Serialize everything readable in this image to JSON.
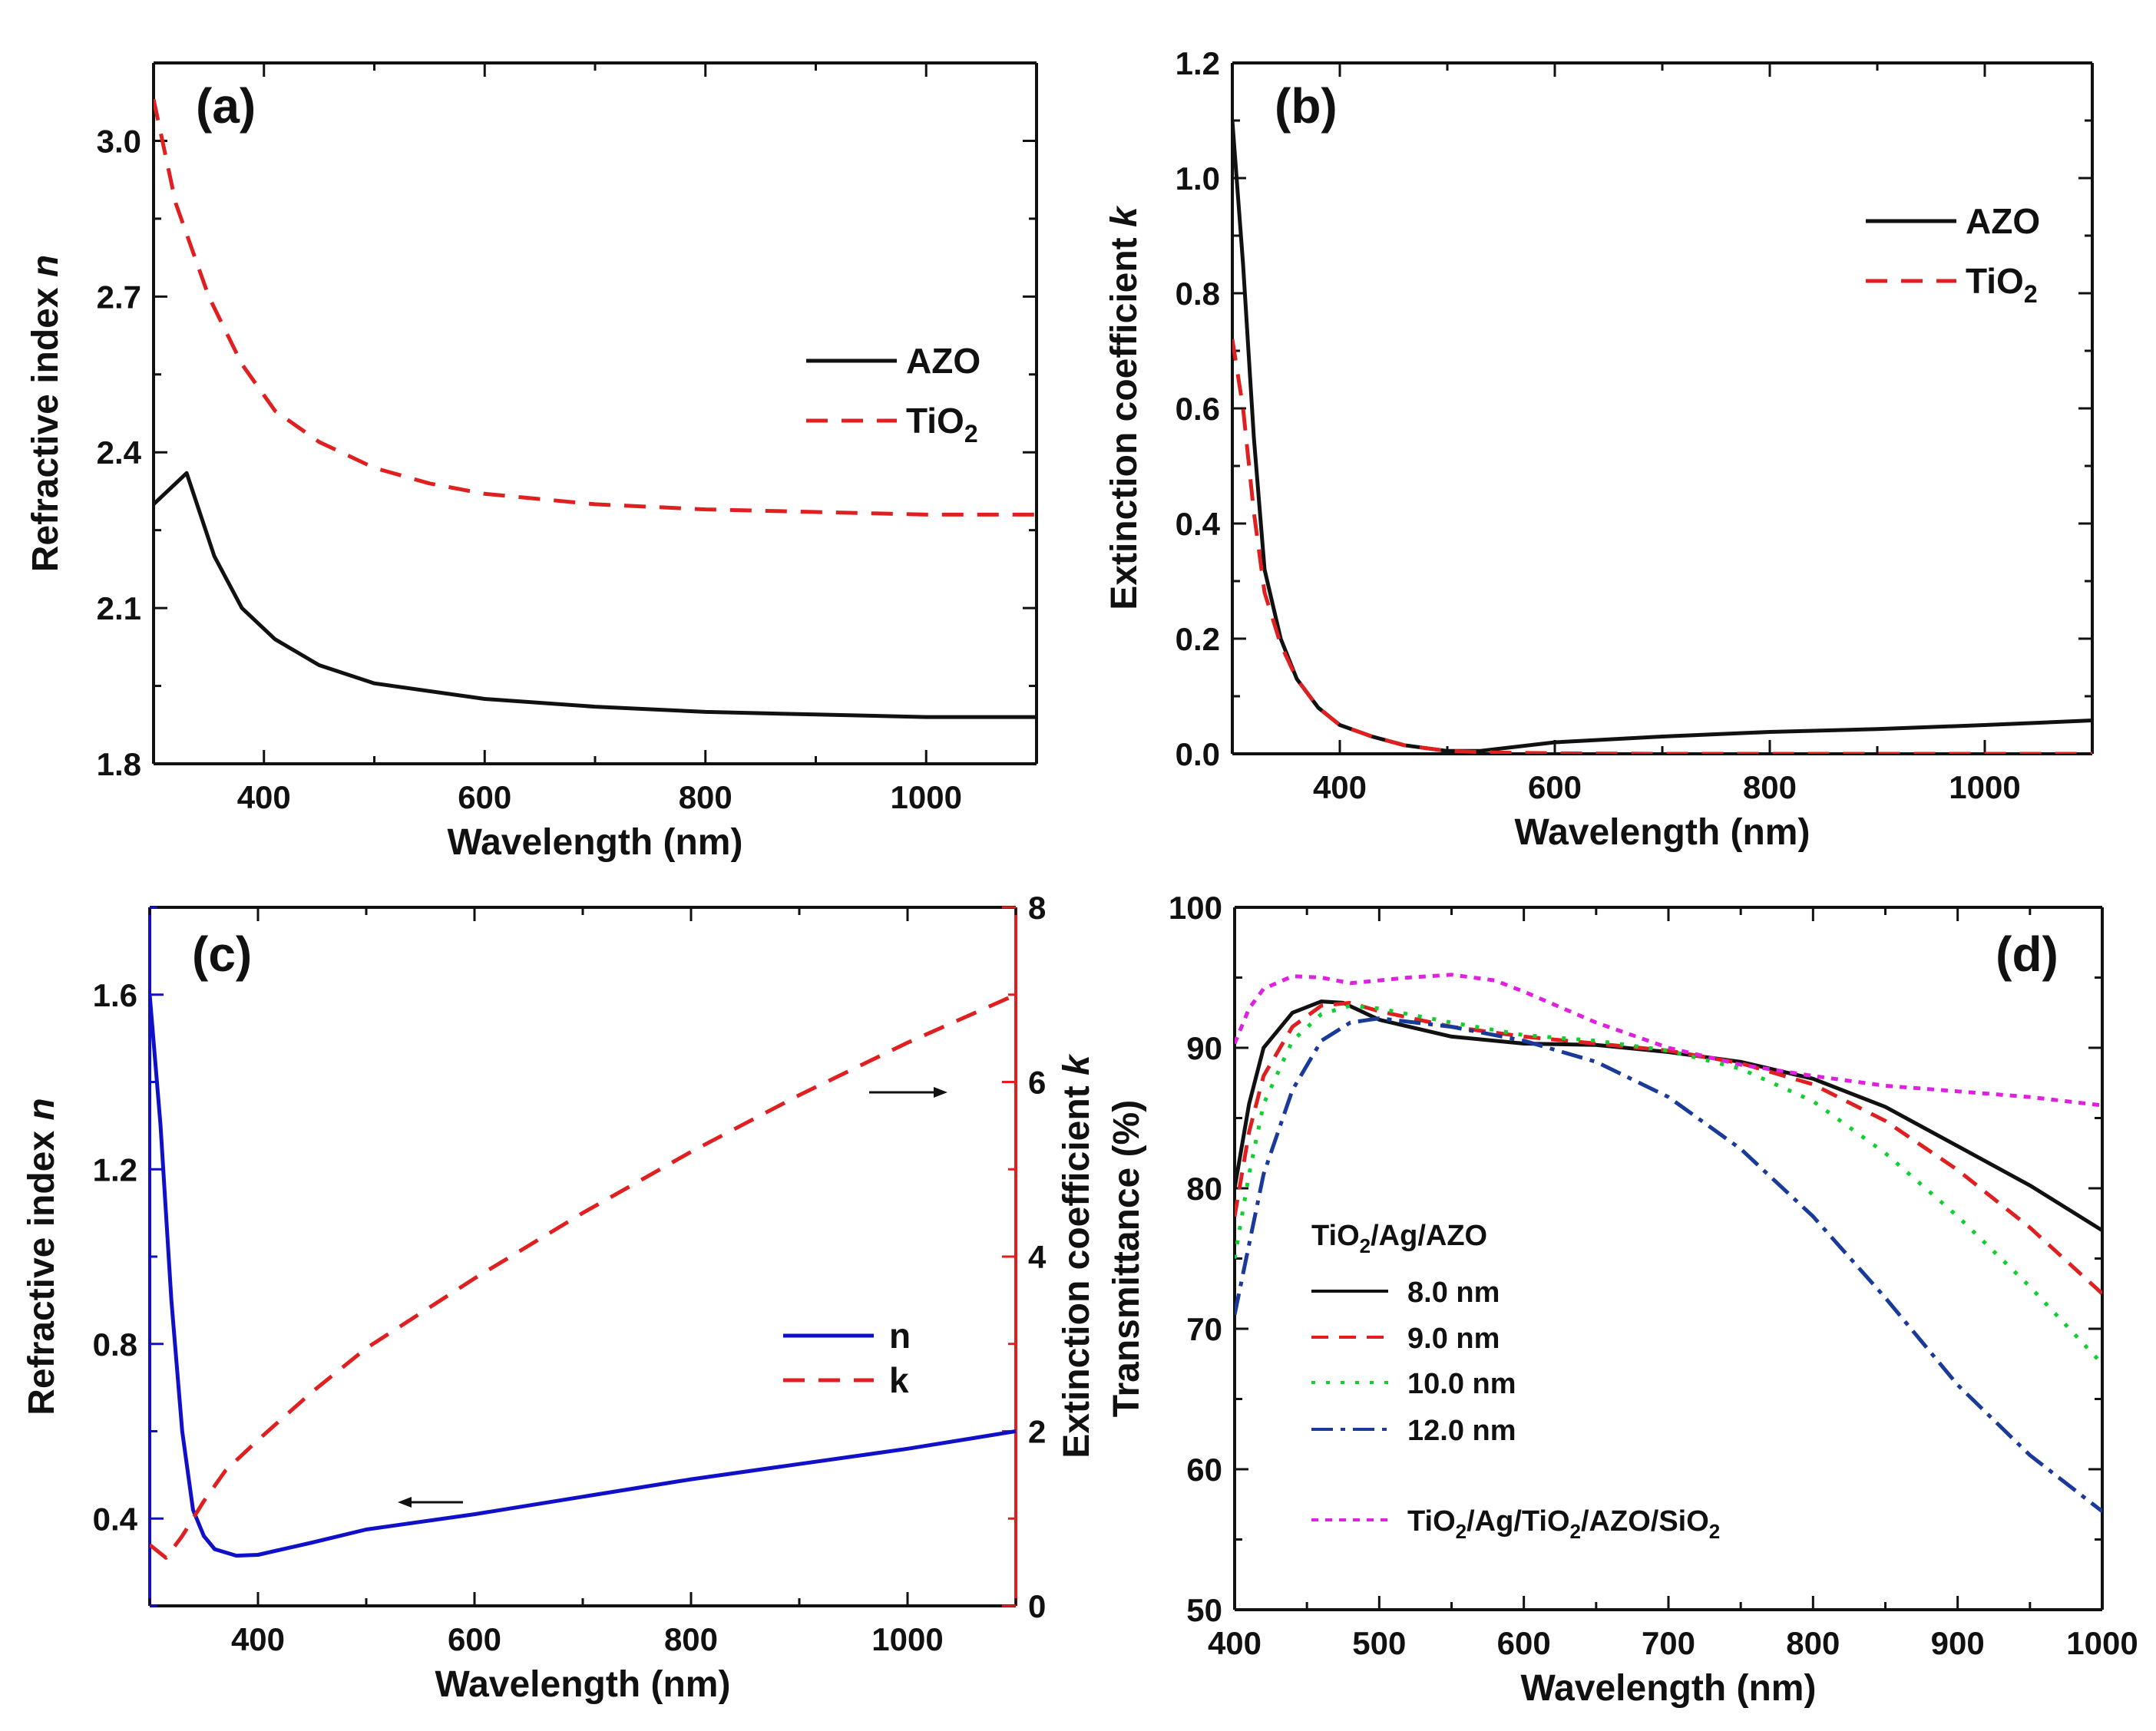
{
  "colors": {
    "black": "#111111",
    "red": "#e02020",
    "blue": "#1010c8",
    "green": "#10d030",
    "navy": "#1a3a9a",
    "magenta": "#e020e0"
  },
  "chart_data": [
    {
      "id": "a",
      "type": "line",
      "panel_label": "(a)",
      "xlabel": "Wavelength (nm)",
      "ylabel": "Refractive index ",
      "ylabel_symbol": "n",
      "xlim": [
        300,
        1100
      ],
      "ylim": [
        1.8,
        3.15
      ],
      "xticks": [
        400,
        600,
        800,
        1000
      ],
      "xtick_labels": [
        "400",
        "600",
        "800",
        "1000"
      ],
      "yticks": [
        1.8,
        2.1,
        2.4,
        2.7,
        3.0
      ],
      "ytick_labels": [
        "1.8",
        "2.1",
        "2.4",
        "2.7",
        "3.0"
      ],
      "legend_position": "center-right",
      "series": [
        {
          "name": "AZO",
          "legend": "AZO",
          "color": "#111111",
          "dash": "",
          "x": [
            300,
            330,
            355,
            380,
            410,
            450,
            500,
            600,
            700,
            800,
            900,
            1000,
            1100
          ],
          "y": [
            2.3,
            2.36,
            2.2,
            2.1,
            2.04,
            1.99,
            1.955,
            1.925,
            1.91,
            1.9,
            1.895,
            1.89,
            1.89
          ]
        },
        {
          "name": "TiO2",
          "legend": "TiO",
          "legend_sub": "2",
          "color": "#e02020",
          "dash": "28,18",
          "x": [
            300,
            320,
            350,
            380,
            410,
            450,
            500,
            550,
            600,
            700,
            800,
            900,
            1000,
            1100
          ],
          "y": [
            3.08,
            2.88,
            2.7,
            2.57,
            2.48,
            2.42,
            2.37,
            2.34,
            2.32,
            2.3,
            2.29,
            2.285,
            2.28,
            2.28
          ]
        }
      ]
    },
    {
      "id": "b",
      "type": "line",
      "panel_label": "(b)",
      "xlabel": "Wavelength (nm)",
      "ylabel": "Extinction coefficient ",
      "ylabel_symbol": "k",
      "xlim": [
        300,
        1100
      ],
      "ylim": [
        0.0,
        1.2
      ],
      "xticks": [
        400,
        600,
        800,
        1000
      ],
      "xtick_labels": [
        "400",
        "600",
        "800",
        "1000"
      ],
      "yticks": [
        0.0,
        0.2,
        0.4,
        0.6,
        0.8,
        1.0,
        1.2
      ],
      "ytick_labels": [
        "0.0",
        "0.2",
        "0.4",
        "0.6",
        "0.8",
        "1.0",
        "1.2"
      ],
      "legend_position": "upper-right",
      "series": [
        {
          "name": "AZO",
          "legend": "AZO",
          "color": "#111111",
          "dash": "",
          "x": [
            300,
            310,
            320,
            330,
            345,
            360,
            380,
            400,
            430,
            460,
            500,
            530,
            600,
            700,
            800,
            900,
            1000,
            1100
          ],
          "y": [
            1.1,
            0.85,
            0.55,
            0.32,
            0.2,
            0.13,
            0.08,
            0.05,
            0.03,
            0.015,
            0.005,
            0.005,
            0.02,
            0.03,
            0.038,
            0.043,
            0.05,
            0.058
          ]
        },
        {
          "name": "TiO2",
          "legend": "TiO",
          "legend_sub": "2",
          "color": "#e02020",
          "dash": "28,18",
          "x": [
            300,
            310,
            320,
            330,
            345,
            360,
            380,
            400,
            430,
            460,
            500,
            550,
            600,
            700,
            800,
            900,
            1000,
            1100
          ],
          "y": [
            0.72,
            0.6,
            0.42,
            0.28,
            0.19,
            0.13,
            0.08,
            0.05,
            0.03,
            0.015,
            0.005,
            0.002,
            0.001,
            0.0,
            0.0,
            0.0,
            0.0,
            0.0
          ]
        }
      ]
    },
    {
      "id": "c",
      "type": "line",
      "panel_label": "(c)",
      "xlabel": "Wavelength (nm)",
      "ylabel": "Refractive index ",
      "ylabel_symbol": "n",
      "ylabel_right": "Extinction coefficient ",
      "ylabel_right_symbol": "k",
      "xlim": [
        300,
        1100
      ],
      "ylim": [
        0.2,
        1.8
      ],
      "ylim_right": [
        0,
        8
      ],
      "xticks": [
        400,
        600,
        800,
        1000
      ],
      "xtick_labels": [
        "400",
        "600",
        "800",
        "1000"
      ],
      "yticks": [
        0.4,
        0.8,
        1.2,
        1.6
      ],
      "ytick_labels": [
        "0.4",
        "0.8",
        "1.2",
        "1.6"
      ],
      "yticks_right": [
        0,
        2,
        4,
        6,
        8
      ],
      "ytick_right_labels": [
        "0",
        "2",
        "4",
        "6",
        "8"
      ],
      "legend_position": "center-right",
      "annotations": [
        "arrow pointing left toward n axis",
        "arrow pointing right toward k axis"
      ],
      "series": [
        {
          "name": "n",
          "legend": "n",
          "color": "#1010c8",
          "dash": "",
          "axis": "left",
          "x": [
            300,
            310,
            320,
            330,
            340,
            350,
            360,
            380,
            400,
            450,
            500,
            600,
            700,
            800,
            900,
            1000,
            1100
          ],
          "y": [
            1.6,
            1.3,
            0.9,
            0.6,
            0.42,
            0.36,
            0.33,
            0.315,
            0.317,
            0.345,
            0.375,
            0.41,
            0.45,
            0.49,
            0.525,
            0.56,
            0.6
          ]
        },
        {
          "name": "k",
          "legend": "k",
          "color": "#e02020",
          "dash": "28,18",
          "axis": "right",
          "x": [
            300,
            315,
            330,
            350,
            370,
            400,
            450,
            500,
            550,
            600,
            700,
            800,
            900,
            1000,
            1100
          ],
          "y": [
            0.7,
            0.55,
            0.8,
            1.2,
            1.55,
            1.9,
            2.45,
            2.95,
            3.35,
            3.75,
            4.5,
            5.2,
            5.85,
            6.45,
            7.0
          ]
        }
      ]
    },
    {
      "id": "d",
      "type": "line",
      "panel_label": "(d)",
      "xlabel": "Wavelength (nm)",
      "ylabel": "Transmittance (%)",
      "xlim": [
        400,
        1000
      ],
      "ylim": [
        50,
        100
      ],
      "xticks": [
        400,
        500,
        600,
        700,
        800,
        900,
        1000
      ],
      "xtick_labels": [
        "400",
        "500",
        "600",
        "700",
        "800",
        "900",
        "1000"
      ],
      "yticks": [
        50,
        60,
        70,
        80,
        90,
        100
      ],
      "ytick_labels": [
        "50",
        "60",
        "70",
        "80",
        "90",
        "100"
      ],
      "legend_position": "lower-left",
      "legend_title": "TiO",
      "legend_title_sub": "2",
      "legend_title_rest": "/Ag/AZO",
      "series": [
        {
          "name": "8.0 nm",
          "legend": "8.0 nm",
          "color": "#111111",
          "dash": "",
          "x": [
            400,
            410,
            420,
            440,
            460,
            475,
            500,
            550,
            600,
            650,
            700,
            750,
            800,
            850,
            900,
            950,
            1000
          ],
          "y": [
            80,
            86,
            90,
            92.5,
            93.3,
            93.2,
            92.0,
            90.8,
            90.3,
            90.2,
            89.7,
            89.0,
            87.8,
            85.8,
            83.0,
            80.2,
            77.0
          ]
        },
        {
          "name": "9.0 nm",
          "legend": "9.0 nm",
          "color": "#e02020",
          "dash": "22,14",
          "x": [
            400,
            410,
            420,
            440,
            460,
            480,
            500,
            550,
            600,
            650,
            700,
            750,
            800,
            850,
            900,
            950,
            1000
          ],
          "y": [
            78,
            84,
            88,
            91.5,
            93.0,
            93.2,
            92.6,
            91.5,
            90.8,
            90.3,
            89.8,
            88.9,
            87.4,
            84.8,
            81.3,
            77.2,
            72.5
          ]
        },
        {
          "name": "10.0 nm",
          "legend": "10.0 nm",
          "color": "#10d030",
          "dash": "5,14",
          "x": [
            400,
            410,
            420,
            440,
            460,
            480,
            500,
            550,
            600,
            650,
            700,
            750,
            800,
            850,
            900,
            950,
            1000
          ],
          "y": [
            75,
            81,
            86,
            90.5,
            92.4,
            93.0,
            92.8,
            91.8,
            90.9,
            90.5,
            89.8,
            88.5,
            86.2,
            82.5,
            78.0,
            73.0,
            67.5
          ]
        },
        {
          "name": "12.0 nm",
          "legend": "12.0 nm",
          "color": "#1a3a9a",
          "dash": "28,10,6,10",
          "x": [
            400,
            410,
            420,
            440,
            460,
            480,
            500,
            550,
            600,
            650,
            700,
            750,
            800,
            850,
            900,
            950,
            1000
          ],
          "y": [
            71,
            76,
            81,
            87,
            90.5,
            91.8,
            92.1,
            91.5,
            90.5,
            89.0,
            86.5,
            82.8,
            78.0,
            72.2,
            66.0,
            61.0,
            57.0
          ]
        },
        {
          "name": "TiO2/Ag/TiO2/AZO/SiO2",
          "legend": "",
          "color": "#e020e0",
          "dash": "9,9",
          "legend_parts": [
            "TiO",
            "2",
            "/Ag/TiO",
            "2",
            "/AZO/SiO",
            "2"
          ],
          "x": [
            400,
            410,
            420,
            440,
            460,
            480,
            500,
            520,
            550,
            580,
            600,
            650,
            700,
            750,
            800,
            850,
            900,
            950,
            1000
          ],
          "y": [
            90.3,
            92.8,
            94.2,
            95.1,
            95.0,
            94.6,
            94.8,
            95.0,
            95.2,
            94.8,
            94.0,
            91.8,
            90.0,
            88.8,
            88.0,
            87.3,
            86.9,
            86.5,
            85.9
          ]
        }
      ]
    }
  ]
}
